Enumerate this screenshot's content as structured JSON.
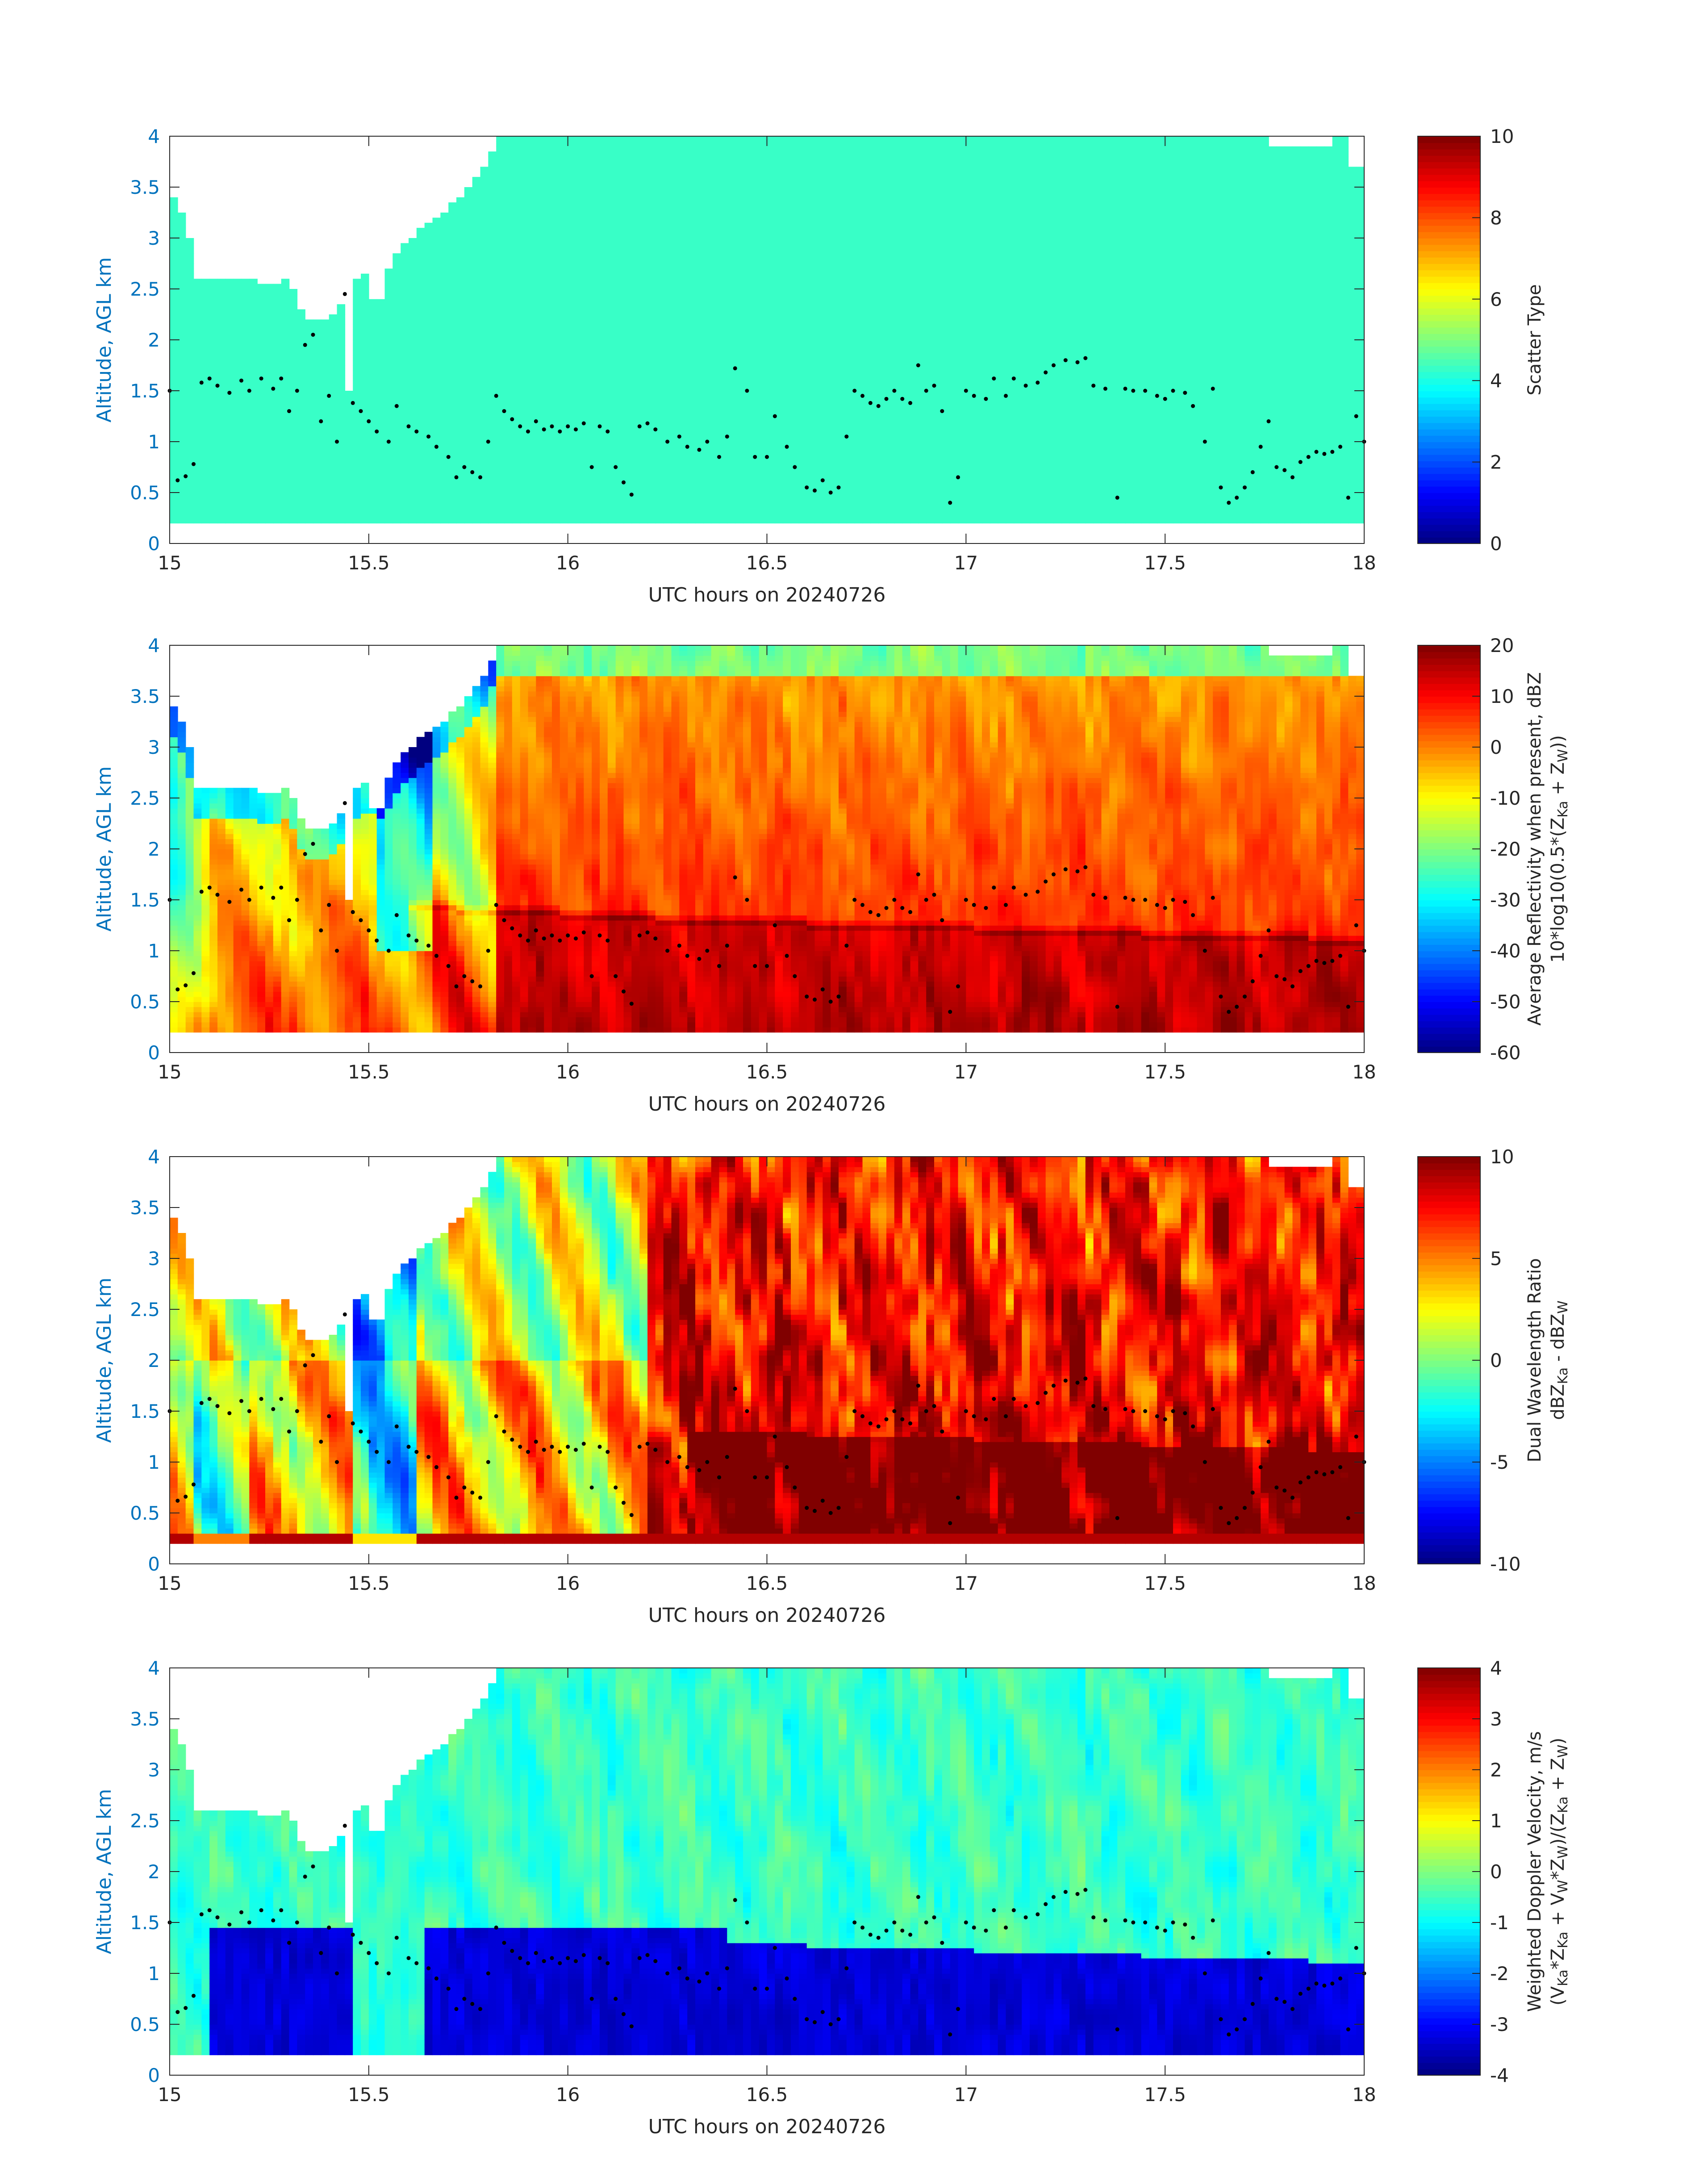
{
  "chart_data": [
    {
      "type": "heatmap",
      "panel": "scatter-type",
      "xlabel": "UTC hours on 20240726",
      "ylabel": "Altitude, AGL km",
      "xlim": [
        15,
        18
      ],
      "ylim": [
        0,
        4
      ],
      "x_ticks": [
        "15",
        "15.5",
        "16",
        "16.5",
        "17",
        "17.5",
        "18"
      ],
      "y_ticks": [
        "0",
        "0.5",
        "1",
        "1.5",
        "2",
        "2.5",
        "3",
        "3.5",
        "4"
      ],
      "colorbar_label_lines": [
        "Scatter Type"
      ],
      "colorbar_range": [
        0,
        10
      ],
      "colorbar_ticks": [
        "0",
        "2",
        "4",
        "6",
        "8",
        "10"
      ],
      "uniform_value": 4.3
    },
    {
      "type": "heatmap",
      "panel": "reflectivity",
      "xlabel": "UTC hours on 20240726",
      "ylabel": "Altitude, AGL km",
      "xlim": [
        15,
        18
      ],
      "ylim": [
        0,
        4
      ],
      "x_ticks": [
        "15",
        "15.5",
        "16",
        "16.5",
        "17",
        "17.5",
        "18"
      ],
      "y_ticks": [
        "0",
        "0.5",
        "1",
        "1.5",
        "2",
        "2.5",
        "3",
        "3.5",
        "4"
      ],
      "colorbar_label_lines": [
        "Average Reflectivity when present, dBZ",
        "10*log10(0.5*(Z_Ka + Z_W))"
      ],
      "colorbar_range": [
        -60,
        20
      ],
      "colorbar_ticks": [
        "-60",
        "-50",
        "-40",
        "-30",
        "-20",
        "-10",
        "0",
        "10",
        "20"
      ]
    },
    {
      "type": "heatmap",
      "panel": "dwr",
      "xlabel": "UTC hours on 20240726",
      "ylabel": "Altitude, AGL km",
      "xlim": [
        15,
        18
      ],
      "ylim": [
        0,
        4
      ],
      "x_ticks": [
        "15",
        "15.5",
        "16",
        "16.5",
        "17",
        "17.5",
        "18"
      ],
      "y_ticks": [
        "0",
        "0.5",
        "1",
        "1.5",
        "2",
        "2.5",
        "3",
        "3.5",
        "4"
      ],
      "colorbar_label_lines": [
        "Dual Wavelength Ratio",
        "dBZ_Ka - dBZ_W"
      ],
      "colorbar_range": [
        -10,
        10
      ],
      "colorbar_ticks": [
        "-10",
        "-5",
        "0",
        "5",
        "10"
      ]
    },
    {
      "type": "heatmap",
      "panel": "doppler",
      "xlabel": "UTC hours on 20240726",
      "ylabel": "Altitude, AGL km",
      "xlim": [
        15,
        18
      ],
      "ylim": [
        0,
        4
      ],
      "x_ticks": [
        "15",
        "15.5",
        "16",
        "16.5",
        "17",
        "17.5",
        "18"
      ],
      "y_ticks": [
        "0",
        "0.5",
        "1",
        "1.5",
        "2",
        "2.5",
        "3",
        "3.5",
        "4"
      ],
      "colorbar_label_lines": [
        "Weighted Doppler Velocity, m/s",
        "(V_Ka*Z_Ka + V_W*Z_W)/(Z_Ka + Z_W)"
      ],
      "colorbar_range": [
        -4,
        4
      ],
      "colorbar_ticks": [
        "-4",
        "-3",
        "-2",
        "-1",
        "0",
        "1",
        "2",
        "3",
        "4"
      ]
    }
  ],
  "lidar_cloud_base_km": [
    [
      15.0,
      1.5
    ],
    [
      15.02,
      0.62
    ],
    [
      15.04,
      0.66
    ],
    [
      15.06,
      0.78
    ],
    [
      15.08,
      1.58
    ],
    [
      15.1,
      1.62
    ],
    [
      15.12,
      1.55
    ],
    [
      15.15,
      1.48
    ],
    [
      15.18,
      1.6
    ],
    [
      15.2,
      1.5
    ],
    [
      15.23,
      1.62
    ],
    [
      15.26,
      1.52
    ],
    [
      15.28,
      1.62
    ],
    [
      15.3,
      1.3
    ],
    [
      15.32,
      1.5
    ],
    [
      15.34,
      1.95
    ],
    [
      15.36,
      2.05
    ],
    [
      15.38,
      1.2
    ],
    [
      15.4,
      1.45
    ],
    [
      15.42,
      1.0
    ],
    [
      15.44,
      2.45
    ],
    [
      15.46,
      1.38
    ],
    [
      15.48,
      1.3
    ],
    [
      15.5,
      1.2
    ],
    [
      15.52,
      1.1
    ],
    [
      15.55,
      1.0
    ],
    [
      15.57,
      1.35
    ],
    [
      15.6,
      1.15
    ],
    [
      15.62,
      1.1
    ],
    [
      15.65,
      1.05
    ],
    [
      15.67,
      0.95
    ],
    [
      15.7,
      0.85
    ],
    [
      15.72,
      0.65
    ],
    [
      15.74,
      0.75
    ],
    [
      15.76,
      0.7
    ],
    [
      15.78,
      0.65
    ],
    [
      15.8,
      1.0
    ],
    [
      15.82,
      1.45
    ],
    [
      15.84,
      1.3
    ],
    [
      15.86,
      1.22
    ],
    [
      15.88,
      1.15
    ],
    [
      15.9,
      1.1
    ],
    [
      15.92,
      1.2
    ],
    [
      15.94,
      1.12
    ],
    [
      15.96,
      1.15
    ],
    [
      15.98,
      1.1
    ],
    [
      16.0,
      1.15
    ],
    [
      16.02,
      1.12
    ],
    [
      16.04,
      1.18
    ],
    [
      16.06,
      0.75
    ],
    [
      16.08,
      1.15
    ],
    [
      16.1,
      1.1
    ],
    [
      16.12,
      0.75
    ],
    [
      16.14,
      0.6
    ],
    [
      16.16,
      0.48
    ],
    [
      16.18,
      1.15
    ],
    [
      16.2,
      1.18
    ],
    [
      16.22,
      1.12
    ],
    [
      16.25,
      1.0
    ],
    [
      16.28,
      1.05
    ],
    [
      16.3,
      0.95
    ],
    [
      16.33,
      0.92
    ],
    [
      16.35,
      1.0
    ],
    [
      16.38,
      0.85
    ],
    [
      16.4,
      1.05
    ],
    [
      16.42,
      1.72
    ],
    [
      16.45,
      1.5
    ],
    [
      16.47,
      0.85
    ],
    [
      16.5,
      0.85
    ],
    [
      16.52,
      1.25
    ],
    [
      16.55,
      0.95
    ],
    [
      16.57,
      0.75
    ],
    [
      16.6,
      0.55
    ],
    [
      16.62,
      0.52
    ],
    [
      16.64,
      0.62
    ],
    [
      16.66,
      0.5
    ],
    [
      16.68,
      0.55
    ],
    [
      16.7,
      1.05
    ],
    [
      16.72,
      1.5
    ],
    [
      16.74,
      1.45
    ],
    [
      16.76,
      1.38
    ],
    [
      16.78,
      1.35
    ],
    [
      16.8,
      1.42
    ],
    [
      16.82,
      1.5
    ],
    [
      16.84,
      1.42
    ],
    [
      16.86,
      1.38
    ],
    [
      16.88,
      1.75
    ],
    [
      16.9,
      1.5
    ],
    [
      16.92,
      1.55
    ],
    [
      16.94,
      1.3
    ],
    [
      16.96,
      0.4
    ],
    [
      16.98,
      0.65
    ],
    [
      17.0,
      1.5
    ],
    [
      17.02,
      1.45
    ],
    [
      17.05,
      1.42
    ],
    [
      17.07,
      1.62
    ],
    [
      17.1,
      1.45
    ],
    [
      17.12,
      1.62
    ],
    [
      17.15,
      1.55
    ],
    [
      17.18,
      1.58
    ],
    [
      17.2,
      1.68
    ],
    [
      17.22,
      1.75
    ],
    [
      17.25,
      1.8
    ],
    [
      17.28,
      1.78
    ],
    [
      17.3,
      1.82
    ],
    [
      17.32,
      1.55
    ],
    [
      17.35,
      1.52
    ],
    [
      17.38,
      0.45
    ],
    [
      17.4,
      1.52
    ],
    [
      17.42,
      1.5
    ],
    [
      17.45,
      1.5
    ],
    [
      17.48,
      1.45
    ],
    [
      17.5,
      1.42
    ],
    [
      17.52,
      1.5
    ],
    [
      17.55,
      1.48
    ],
    [
      17.57,
      1.35
    ],
    [
      17.6,
      1.0
    ],
    [
      17.62,
      1.52
    ],
    [
      17.64,
      0.55
    ],
    [
      17.66,
      0.4
    ],
    [
      17.68,
      0.45
    ],
    [
      17.7,
      0.55
    ],
    [
      17.72,
      0.7
    ],
    [
      17.74,
      0.95
    ],
    [
      17.76,
      1.2
    ],
    [
      17.78,
      0.75
    ],
    [
      17.8,
      0.72
    ],
    [
      17.82,
      0.65
    ],
    [
      17.84,
      0.8
    ],
    [
      17.86,
      0.85
    ],
    [
      17.88,
      0.9
    ],
    [
      17.9,
      0.88
    ],
    [
      17.92,
      0.9
    ],
    [
      17.94,
      0.95
    ],
    [
      17.96,
      0.45
    ],
    [
      17.98,
      1.25
    ],
    [
      18.0,
      1.0
    ]
  ],
  "colors": {
    "axis_label_blue": "#0072BD",
    "scatter_type_fill": "#1FFFD6",
    "marker": "#000000"
  }
}
